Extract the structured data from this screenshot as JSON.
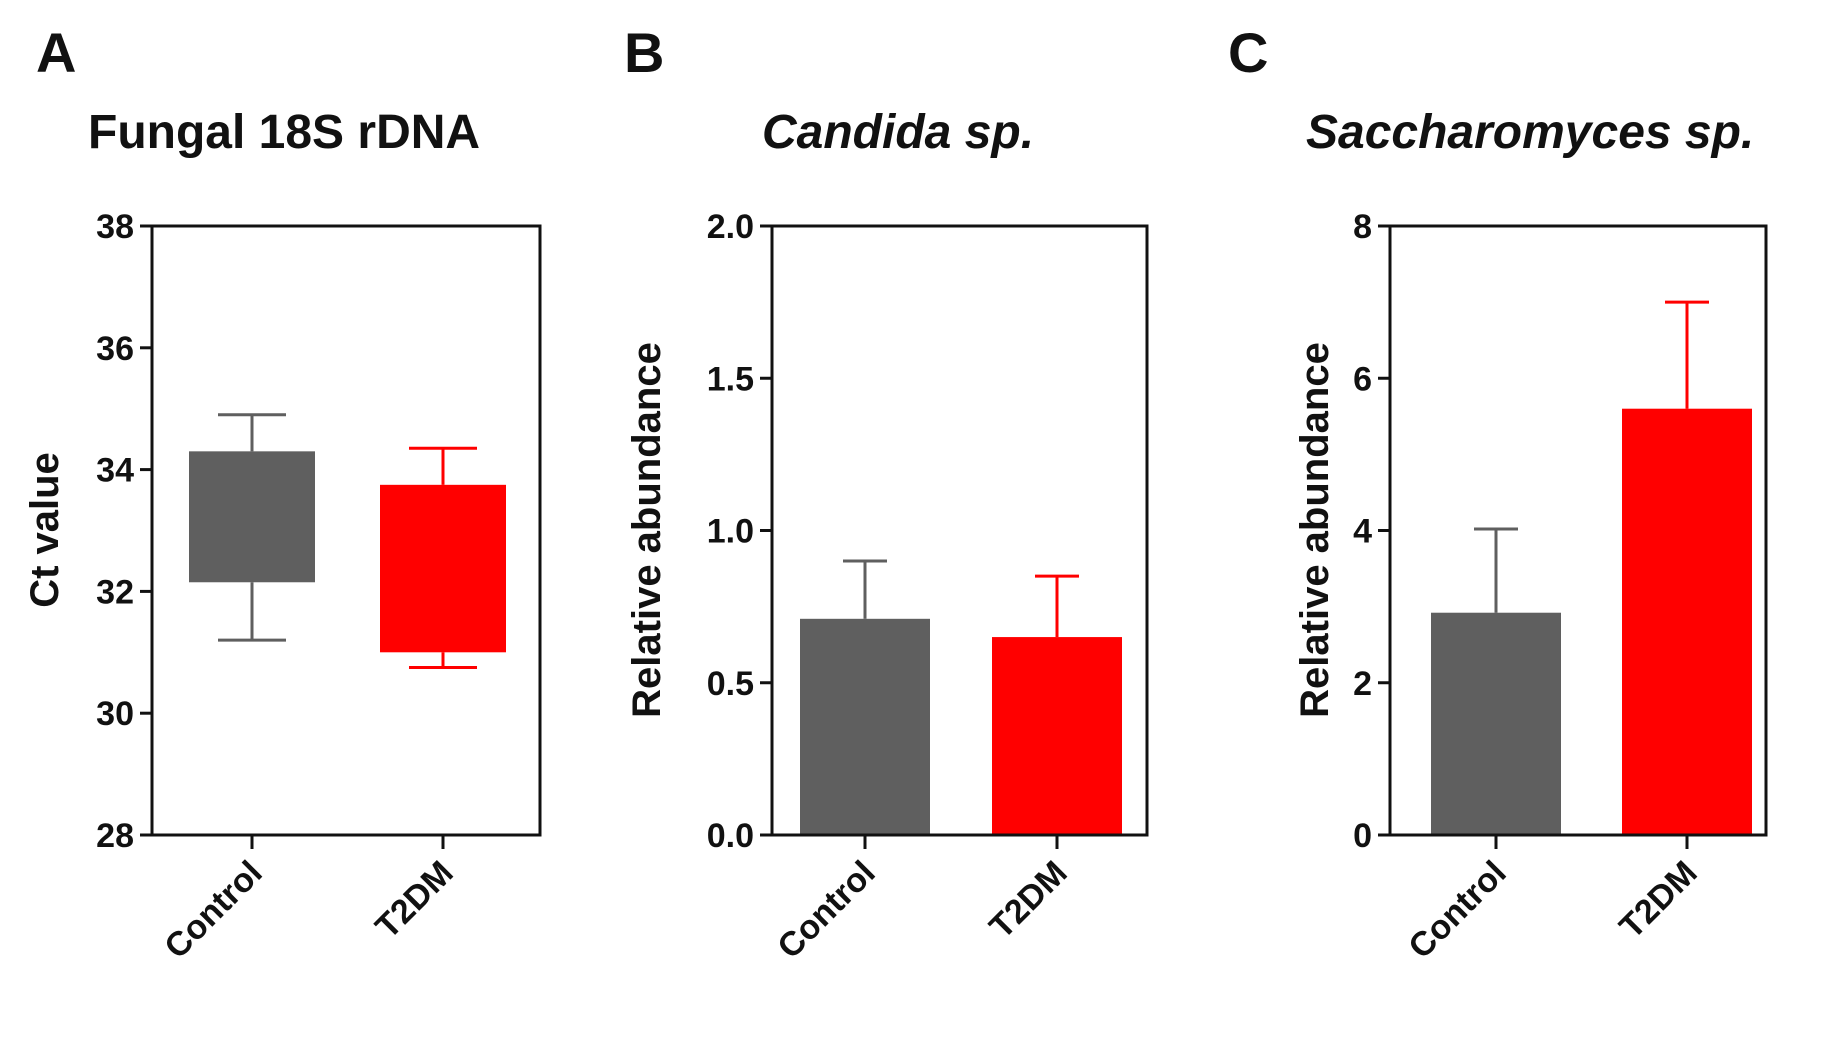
{
  "chart_data": [
    {
      "id": "A",
      "type": "box",
      "panel_label": "A",
      "title": "Fungal 18S rDNA",
      "title_italic": false,
      "ylabel": "Ct value",
      "ylim": [
        28,
        38
      ],
      "yticks": [
        28,
        30,
        32,
        34,
        36,
        38
      ],
      "ytick_labels": [
        "28",
        "30",
        "32",
        "34",
        "36",
        "38"
      ],
      "categories": [
        "Control",
        "T2DM"
      ],
      "boxes": [
        {
          "name": "Control",
          "whisker_low": 31.2,
          "q1": 32.15,
          "q3": 34.3,
          "whisker_high": 34.9,
          "color": "#5f5f5f"
        },
        {
          "name": "T2DM",
          "whisker_low": 30.75,
          "q1": 31.0,
          "q3": 33.75,
          "whisker_high": 34.35,
          "color": "#ff0000"
        }
      ]
    },
    {
      "id": "B",
      "type": "bar",
      "panel_label": "B",
      "title": "Candida sp.",
      "title_italic": true,
      "ylabel": "Relative abundance",
      "ylim": [
        0,
        2.0
      ],
      "yticks": [
        0,
        0.5,
        1.0,
        1.5,
        2.0
      ],
      "ytick_labels": [
        "0.0",
        "0.5",
        "1.0",
        "1.5",
        "2.0"
      ],
      "categories": [
        "Control",
        "T2DM"
      ],
      "values": [
        0.71,
        0.65
      ],
      "errors": [
        0.19,
        0.2
      ],
      "colors": [
        "#5f5f5f",
        "#ff0000"
      ]
    },
    {
      "id": "C",
      "type": "bar",
      "panel_label": "C",
      "title": "Saccharomyces sp.",
      "title_italic": true,
      "ylabel": "Relative abundance",
      "ylim": [
        0,
        8
      ],
      "yticks": [
        0,
        2,
        4,
        6,
        8
      ],
      "ytick_labels": [
        "0",
        "2",
        "4",
        "6",
        "8"
      ],
      "categories": [
        "Control",
        "T2DM"
      ],
      "values": [
        2.92,
        5.6
      ],
      "errors": [
        1.1,
        1.4
      ],
      "colors": [
        "#5f5f5f",
        "#ff0000"
      ]
    }
  ]
}
